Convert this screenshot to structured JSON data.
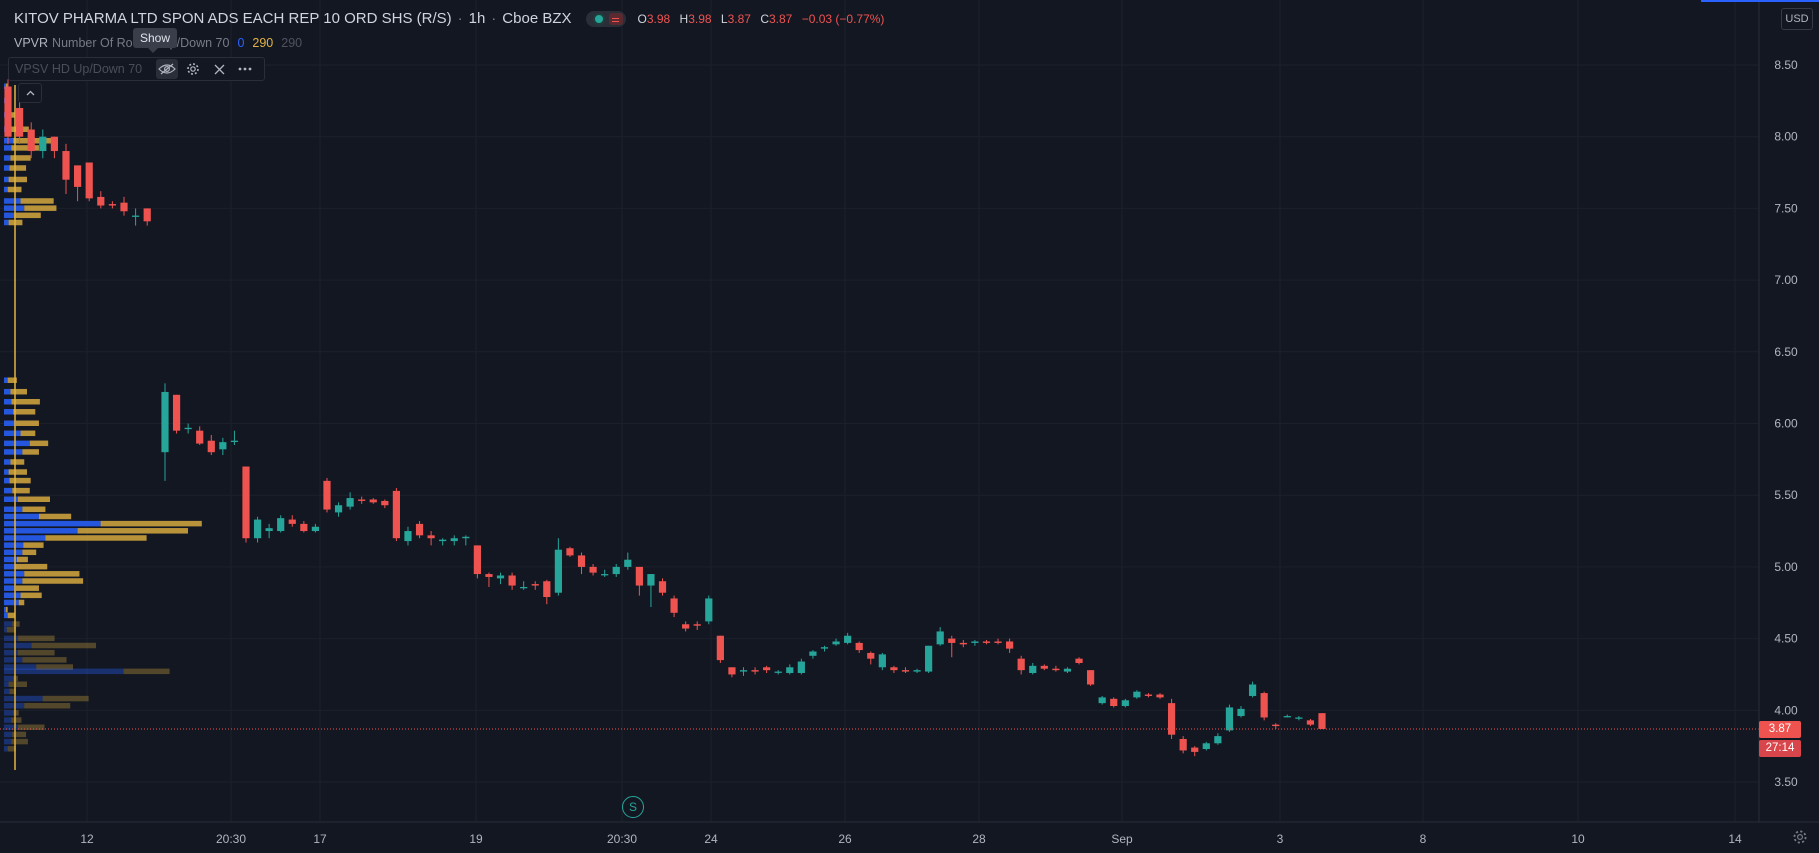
{
  "header": {
    "symbol_name": "KITOV PHARMA LTD SPON ADS EACH REP 10 ORD SHS (R/S)",
    "interval": "1h",
    "exchange": "Cboe BZX",
    "ohlc": {
      "o_label": "O",
      "o": "3.98",
      "h_label": "H",
      "h": "3.98",
      "l_label": "L",
      "l": "3.87",
      "c_label": "C",
      "c": "3.87",
      "change": "−0.03 (−0.77%)"
    }
  },
  "indicator1": {
    "name": "VPVR",
    "params_left": "Number Of Ro",
    "params_right": "Up/Down 70",
    "v1": "0",
    "v2": "290",
    "v3": "290"
  },
  "indicator2": {
    "name": "VPSV HD Up/Down 70"
  },
  "tooltip": {
    "text": "Show"
  },
  "currency": "USD",
  "price_axis": {
    "ticks": [
      "8.50",
      "8.00",
      "7.50",
      "7.00",
      "6.50",
      "6.00",
      "5.50",
      "5.00",
      "4.50",
      "4.00",
      "3.50"
    ]
  },
  "time_axis": {
    "ticks": [
      "12",
      "20:30",
      "17",
      "19",
      "20:30",
      "24",
      "26",
      "28",
      "Sep",
      "3",
      "8",
      "10",
      "14"
    ]
  },
  "last_price": {
    "value": "3.87",
    "countdown": "27:14"
  },
  "split_marker": "S",
  "colors": {
    "up": "#26a69a",
    "down": "#ef5350",
    "vol_up": "#2962ff",
    "vol_down": "#e3b341",
    "bg": "#131722",
    "grid": "#1c202b"
  },
  "chart_data": {
    "type": "candlestick",
    "title": "KITOV PHARMA LTD SPON ADS EACH REP 10 ORD SHS (R/S)",
    "ylim": [
      3.2,
      8.7
    ],
    "candles": [
      {
        "o": 8.35,
        "h": 8.4,
        "l": 7.95,
        "c": 8.0
      },
      {
        "o": 8.2,
        "h": 8.25,
        "l": 7.95,
        "c": 8.0
      },
      {
        "o": 8.05,
        "h": 8.1,
        "l": 7.85,
        "c": 7.9
      },
      {
        "o": 7.9,
        "h": 8.05,
        "l": 7.85,
        "c": 8.0
      },
      {
        "o": 8.0,
        "h": 8.0,
        "l": 7.85,
        "c": 7.9
      },
      {
        "o": 7.9,
        "h": 7.95,
        "l": 7.6,
        "c": 7.7
      },
      {
        "o": 7.8,
        "h": 7.8,
        "l": 7.55,
        "c": 7.65
      },
      {
        "o": 7.82,
        "h": 7.82,
        "l": 7.55,
        "c": 7.57
      },
      {
        "o": 7.58,
        "h": 7.62,
        "l": 7.5,
        "c": 7.52
      },
      {
        "o": 7.53,
        "h": 7.55,
        "l": 7.5,
        "c": 7.52
      },
      {
        "o": 7.54,
        "h": 7.58,
        "l": 7.45,
        "c": 7.48
      },
      {
        "o": 7.45,
        "h": 7.5,
        "l": 7.38,
        "c": 7.45
      },
      {
        "o": 7.5,
        "h": 7.5,
        "l": 7.38,
        "c": 7.41
      },
      {
        "o": 5.8,
        "h": 6.28,
        "l": 5.6,
        "c": 6.22
      },
      {
        "o": 6.2,
        "h": 6.2,
        "l": 5.93,
        "c": 5.95
      },
      {
        "o": 5.97,
        "h": 6.0,
        "l": 5.93,
        "c": 5.97
      },
      {
        "o": 5.95,
        "h": 5.98,
        "l": 5.85,
        "c": 5.86
      },
      {
        "o": 5.88,
        "h": 5.92,
        "l": 5.78,
        "c": 5.8
      },
      {
        "o": 5.82,
        "h": 5.9,
        "l": 5.78,
        "c": 5.87
      },
      {
        "o": 5.88,
        "h": 5.95,
        "l": 5.85,
        "c": 5.88
      },
      {
        "o": 5.7,
        "h": 5.7,
        "l": 5.17,
        "c": 5.2
      },
      {
        "o": 5.2,
        "h": 5.35,
        "l": 5.17,
        "c": 5.33
      },
      {
        "o": 5.25,
        "h": 5.3,
        "l": 5.2,
        "c": 5.27
      },
      {
        "o": 5.25,
        "h": 5.36,
        "l": 5.24,
        "c": 5.34
      },
      {
        "o": 5.33,
        "h": 5.36,
        "l": 5.28,
        "c": 5.3
      },
      {
        "o": 5.3,
        "h": 5.32,
        "l": 5.24,
        "c": 5.25
      },
      {
        "o": 5.25,
        "h": 5.3,
        "l": 5.24,
        "c": 5.28
      },
      {
        "o": 5.6,
        "h": 5.62,
        "l": 5.38,
        "c": 5.4
      },
      {
        "o": 5.38,
        "h": 5.45,
        "l": 5.35,
        "c": 5.43
      },
      {
        "o": 5.42,
        "h": 5.52,
        "l": 5.4,
        "c": 5.48
      },
      {
        "o": 5.47,
        "h": 5.49,
        "l": 5.44,
        "c": 5.46
      },
      {
        "o": 5.47,
        "h": 5.48,
        "l": 5.44,
        "c": 5.45
      },
      {
        "o": 5.46,
        "h": 5.47,
        "l": 5.41,
        "c": 5.43
      },
      {
        "o": 5.53,
        "h": 5.55,
        "l": 5.18,
        "c": 5.2
      },
      {
        "o": 5.18,
        "h": 5.28,
        "l": 5.15,
        "c": 5.25
      },
      {
        "o": 5.3,
        "h": 5.32,
        "l": 5.2,
        "c": 5.22
      },
      {
        "o": 5.22,
        "h": 5.25,
        "l": 5.15,
        "c": 5.2
      },
      {
        "o": 5.18,
        "h": 5.2,
        "l": 5.15,
        "c": 5.19
      },
      {
        "o": 5.18,
        "h": 5.22,
        "l": 5.15,
        "c": 5.2
      },
      {
        "o": 5.2,
        "h": 5.22,
        "l": 5.15,
        "c": 5.21
      },
      {
        "o": 5.15,
        "h": 5.15,
        "l": 4.92,
        "c": 4.95
      },
      {
        "o": 4.95,
        "h": 4.96,
        "l": 4.86,
        "c": 4.93
      },
      {
        "o": 4.92,
        "h": 4.96,
        "l": 4.88,
        "c": 4.94
      },
      {
        "o": 4.94,
        "h": 4.96,
        "l": 4.84,
        "c": 4.87
      },
      {
        "o": 4.86,
        "h": 4.9,
        "l": 4.84,
        "c": 4.86
      },
      {
        "o": 4.88,
        "h": 4.9,
        "l": 4.84,
        "c": 4.87
      },
      {
        "o": 4.9,
        "h": 4.91,
        "l": 4.74,
        "c": 4.79
      },
      {
        "o": 4.82,
        "h": 5.2,
        "l": 4.8,
        "c": 5.12
      },
      {
        "o": 5.13,
        "h": 5.14,
        "l": 5.07,
        "c": 5.08
      },
      {
        "o": 5.08,
        "h": 5.1,
        "l": 4.95,
        "c": 5.0
      },
      {
        "o": 5.0,
        "h": 5.02,
        "l": 4.94,
        "c": 4.96
      },
      {
        "o": 4.95,
        "h": 4.98,
        "l": 4.93,
        "c": 4.95
      },
      {
        "o": 4.95,
        "h": 5.02,
        "l": 4.93,
        "c": 5.0
      },
      {
        "o": 5.0,
        "h": 5.1,
        "l": 4.98,
        "c": 5.05
      },
      {
        "o": 5.0,
        "h": 5.0,
        "l": 4.8,
        "c": 4.87
      },
      {
        "o": 4.87,
        "h": 4.95,
        "l": 4.72,
        "c": 4.95
      },
      {
        "o": 4.9,
        "h": 4.92,
        "l": 4.8,
        "c": 4.82
      },
      {
        "o": 4.78,
        "h": 4.8,
        "l": 4.65,
        "c": 4.68
      },
      {
        "o": 4.6,
        "h": 4.62,
        "l": 4.55,
        "c": 4.57
      },
      {
        "o": 4.6,
        "h": 4.62,
        "l": 4.56,
        "c": 4.59
      },
      {
        "o": 4.62,
        "h": 4.8,
        "l": 4.6,
        "c": 4.78
      },
      {
        "o": 4.52,
        "h": 4.52,
        "l": 4.33,
        "c": 4.35
      },
      {
        "o": 4.3,
        "h": 4.3,
        "l": 4.23,
        "c": 4.25
      },
      {
        "o": 4.27,
        "h": 4.3,
        "l": 4.24,
        "c": 4.28
      },
      {
        "o": 4.28,
        "h": 4.3,
        "l": 4.25,
        "c": 4.27
      },
      {
        "o": 4.3,
        "h": 4.31,
        "l": 4.26,
        "c": 4.28
      },
      {
        "o": 4.27,
        "h": 4.28,
        "l": 4.25,
        "c": 4.27
      },
      {
        "o": 4.26,
        "h": 4.32,
        "l": 4.25,
        "c": 4.3
      },
      {
        "o": 4.26,
        "h": 4.36,
        "l": 4.25,
        "c": 4.34
      },
      {
        "o": 4.38,
        "h": 4.42,
        "l": 4.36,
        "c": 4.41
      },
      {
        "o": 4.43,
        "h": 4.45,
        "l": 4.41,
        "c": 4.44
      },
      {
        "o": 4.46,
        "h": 4.5,
        "l": 4.45,
        "c": 4.48
      },
      {
        "o": 4.47,
        "h": 4.54,
        "l": 4.46,
        "c": 4.52
      },
      {
        "o": 4.47,
        "h": 4.48,
        "l": 4.4,
        "c": 4.42
      },
      {
        "o": 4.4,
        "h": 4.41,
        "l": 4.32,
        "c": 4.36
      },
      {
        "o": 4.3,
        "h": 4.4,
        "l": 4.28,
        "c": 4.39
      },
      {
        "o": 4.3,
        "h": 4.31,
        "l": 4.26,
        "c": 4.28
      },
      {
        "o": 4.28,
        "h": 4.3,
        "l": 4.26,
        "c": 4.27
      },
      {
        "o": 4.27,
        "h": 4.29,
        "l": 4.26,
        "c": 4.28
      },
      {
        "o": 4.27,
        "h": 4.45,
        "l": 4.26,
        "c": 4.45
      },
      {
        "o": 4.46,
        "h": 4.58,
        "l": 4.45,
        "c": 4.55
      },
      {
        "o": 4.5,
        "h": 4.52,
        "l": 4.37,
        "c": 4.47
      },
      {
        "o": 4.47,
        "h": 4.49,
        "l": 4.44,
        "c": 4.46
      },
      {
        "o": 4.47,
        "h": 4.49,
        "l": 4.45,
        "c": 4.48
      },
      {
        "o": 4.48,
        "h": 4.49,
        "l": 4.46,
        "c": 4.47
      },
      {
        "o": 4.48,
        "h": 4.5,
        "l": 4.46,
        "c": 4.47
      },
      {
        "o": 4.48,
        "h": 4.5,
        "l": 4.4,
        "c": 4.43
      },
      {
        "o": 4.36,
        "h": 4.38,
        "l": 4.25,
        "c": 4.28
      },
      {
        "o": 4.26,
        "h": 4.33,
        "l": 4.25,
        "c": 4.31
      },
      {
        "o": 4.31,
        "h": 4.32,
        "l": 4.28,
        "c": 4.29
      },
      {
        "o": 4.29,
        "h": 4.31,
        "l": 4.27,
        "c": 4.28
      },
      {
        "o": 4.27,
        "h": 4.3,
        "l": 4.26,
        "c": 4.29
      },
      {
        "o": 4.36,
        "h": 4.37,
        "l": 4.32,
        "c": 4.33
      },
      {
        "o": 4.28,
        "h": 4.28,
        "l": 4.17,
        "c": 4.18
      },
      {
        "o": 4.05,
        "h": 4.1,
        "l": 4.04,
        "c": 4.09
      },
      {
        "o": 4.08,
        "h": 4.09,
        "l": 4.02,
        "c": 4.03
      },
      {
        "o": 4.03,
        "h": 4.08,
        "l": 4.02,
        "c": 4.07
      },
      {
        "o": 4.09,
        "h": 4.14,
        "l": 4.08,
        "c": 4.13
      },
      {
        "o": 4.11,
        "h": 4.12,
        "l": 4.09,
        "c": 4.1
      },
      {
        "o": 4.11,
        "h": 4.12,
        "l": 4.08,
        "c": 4.09
      },
      {
        "o": 4.05,
        "h": 4.08,
        "l": 3.8,
        "c": 3.83
      },
      {
        "o": 3.8,
        "h": 3.82,
        "l": 3.7,
        "c": 3.72
      },
      {
        "o": 3.74,
        "h": 3.75,
        "l": 3.68,
        "c": 3.71
      },
      {
        "o": 3.73,
        "h": 3.78,
        "l": 3.72,
        "c": 3.77
      },
      {
        "o": 3.77,
        "h": 3.84,
        "l": 3.76,
        "c": 3.82
      },
      {
        "o": 3.86,
        "h": 4.04,
        "l": 3.85,
        "c": 4.02
      },
      {
        "o": 3.96,
        "h": 4.03,
        "l": 3.95,
        "c": 4.01
      },
      {
        "o": 4.1,
        "h": 4.2,
        "l": 4.09,
        "c": 4.18
      },
      {
        "o": 4.12,
        "h": 4.13,
        "l": 3.93,
        "c": 3.95
      },
      {
        "o": 3.9,
        "h": 3.91,
        "l": 3.87,
        "c": 3.89
      },
      {
        "o": 3.96,
        "h": 3.97,
        "l": 3.95,
        "c": 3.96
      },
      {
        "o": 3.95,
        "h": 3.96,
        "l": 3.93,
        "c": 3.95
      },
      {
        "o": 3.93,
        "h": 3.94,
        "l": 3.89,
        "c": 3.9
      },
      {
        "o": 3.98,
        "h": 3.98,
        "l": 3.87,
        "c": 3.87
      }
    ],
    "volume_profile": [
      {
        "p": 8.35,
        "up": 4,
        "down": 5
      },
      {
        "p": 8.25,
        "up": 6,
        "down": 8
      },
      {
        "p": 8.15,
        "up": 10,
        "down": 14
      },
      {
        "p": 8.05,
        "up": 14,
        "down": 40
      },
      {
        "p": 7.97,
        "up": 20,
        "down": 88
      },
      {
        "p": 7.92,
        "up": 16,
        "down": 60
      },
      {
        "p": 7.85,
        "up": 14,
        "down": 44
      },
      {
        "p": 7.78,
        "up": 12,
        "down": 36
      },
      {
        "p": 7.7,
        "up": 10,
        "down": 40
      },
      {
        "p": 7.63,
        "up": 8,
        "down": 30
      },
      {
        "p": 7.55,
        "up": 36,
        "down": 72
      },
      {
        "p": 7.5,
        "up": 44,
        "down": 70
      },
      {
        "p": 7.45,
        "up": 22,
        "down": 58
      },
      {
        "p": 7.4,
        "up": 10,
        "down": 30
      },
      {
        "p": 6.3,
        "up": 8,
        "down": 20
      },
      {
        "p": 6.22,
        "up": 14,
        "down": 36
      },
      {
        "p": 6.15,
        "up": 16,
        "down": 62
      },
      {
        "p": 6.08,
        "up": 20,
        "down": 48
      },
      {
        "p": 6.0,
        "up": 26,
        "down": 50
      },
      {
        "p": 5.93,
        "up": 36,
        "down": 32
      },
      {
        "p": 5.86,
        "up": 56,
        "down": 40
      },
      {
        "p": 5.8,
        "up": 40,
        "down": 36
      },
      {
        "p": 5.73,
        "up": 14,
        "down": 30
      },
      {
        "p": 5.66,
        "up": 10,
        "down": 40
      },
      {
        "p": 5.6,
        "up": 12,
        "down": 46
      },
      {
        "p": 5.53,
        "up": 18,
        "down": 38
      },
      {
        "p": 5.47,
        "up": 30,
        "down": 70
      },
      {
        "p": 5.4,
        "up": 40,
        "down": 50
      },
      {
        "p": 5.35,
        "up": 76,
        "down": 70
      },
      {
        "p": 5.3,
        "up": 210,
        "down": 220
      },
      {
        "p": 5.25,
        "up": 160,
        "down": 240
      },
      {
        "p": 5.2,
        "up": 90,
        "down": 220
      },
      {
        "p": 5.15,
        "up": 42,
        "down": 44
      },
      {
        "p": 5.1,
        "up": 40,
        "down": 30
      },
      {
        "p": 5.05,
        "up": 28,
        "down": 24
      },
      {
        "p": 5.0,
        "up": 24,
        "down": 70
      },
      {
        "p": 4.95,
        "up": 44,
        "down": 120
      },
      {
        "p": 4.9,
        "up": 40,
        "down": 132
      },
      {
        "p": 4.85,
        "up": 26,
        "down": 50
      },
      {
        "p": 4.8,
        "up": 36,
        "down": 46
      },
      {
        "p": 4.75,
        "up": 32,
        "down": 12
      },
      {
        "p": 4.7,
        "up": 4,
        "down": 4
      },
      {
        "p": 4.66,
        "up": 8,
        "down": 16
      },
      {
        "p": 4.6,
        "up": 18,
        "down": 16
      },
      {
        "p": 4.56,
        "up": 6,
        "down": 20
      },
      {
        "p": 4.5,
        "up": 30,
        "down": 80
      },
      {
        "p": 4.45,
        "up": 60,
        "down": 140
      },
      {
        "p": 4.4,
        "up": 30,
        "down": 80
      },
      {
        "p": 4.35,
        "up": 40,
        "down": 96
      },
      {
        "p": 4.3,
        "up": 70,
        "down": 80
      },
      {
        "p": 4.27,
        "up": 260,
        "down": 100
      },
      {
        "p": 4.22,
        "up": 20,
        "down": 10
      },
      {
        "p": 4.18,
        "up": 10,
        "down": 40
      },
      {
        "p": 4.13,
        "up": 12,
        "down": 14
      },
      {
        "p": 4.08,
        "up": 84,
        "down": 100
      },
      {
        "p": 4.03,
        "up": 44,
        "down": 100
      },
      {
        "p": 3.98,
        "up": 20,
        "down": 12
      },
      {
        "p": 3.93,
        "up": 16,
        "down": 22
      },
      {
        "p": 3.88,
        "up": 30,
        "down": 58
      },
      {
        "p": 3.83,
        "up": 18,
        "down": 30
      },
      {
        "p": 3.78,
        "up": 16,
        "down": 36
      },
      {
        "p": 3.73,
        "up": 8,
        "down": 18
      }
    ]
  }
}
